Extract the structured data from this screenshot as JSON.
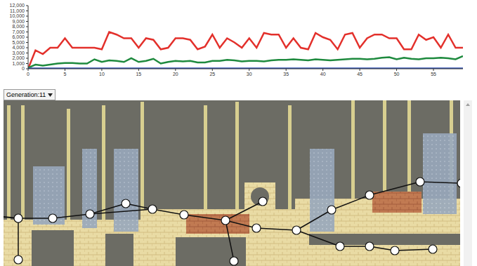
{
  "chart_data": {
    "type": "line",
    "x": [
      0,
      1,
      2,
      3,
      4,
      5,
      6,
      7,
      8,
      9,
      10,
      11,
      12,
      13,
      14,
      15,
      16,
      17,
      18,
      19,
      20,
      21,
      22,
      23,
      24,
      25,
      26,
      27,
      28,
      29,
      30,
      31,
      32,
      33,
      34,
      35,
      36,
      37,
      38,
      39,
      40,
      41,
      42,
      43,
      44,
      45,
      46,
      47,
      48,
      49,
      50,
      51,
      52,
      53,
      54,
      55,
      56,
      57,
      58,
      59
    ],
    "series": [
      {
        "color": "#e3302b",
        "values": [
          0,
          3500,
          2800,
          4000,
          4000,
          5800,
          4000,
          4000,
          4000,
          4000,
          3700,
          7000,
          6500,
          5800,
          5800,
          4000,
          5800,
          5500,
          3700,
          4000,
          5800,
          5800,
          5500,
          3700,
          4200,
          6500,
          4000,
          5800,
          5000,
          4000,
          5800,
          4000,
          6800,
          6500,
          6500,
          4000,
          5800,
          4000,
          3700,
          6800,
          6000,
          5500,
          3700,
          6500,
          6800,
          4000,
          5800,
          6500,
          6500,
          5800,
          5800,
          3700,
          3700,
          6500,
          5500,
          6000,
          4000,
          6500,
          4000,
          4000
        ]
      },
      {
        "color": "#1e8a3e",
        "values": [
          200,
          800,
          600,
          800,
          1000,
          1100,
          1100,
          1000,
          1000,
          1800,
          1300,
          1600,
          1500,
          1300,
          2000,
          1300,
          1500,
          1900,
          1000,
          1300,
          1500,
          1400,
          1500,
          1200,
          1200,
          1500,
          1500,
          1700,
          1600,
          1400,
          1500,
          1500,
          1400,
          1600,
          1700,
          1700,
          1800,
          1700,
          1600,
          1800,
          1700,
          1600,
          1700,
          1800,
          1900,
          1900,
          1800,
          1900,
          2100,
          2200,
          1800,
          2100,
          1900,
          1800,
          2000,
          2000,
          2100,
          2000,
          1800,
          2400
        ]
      },
      {
        "color": "#3454b4",
        "values": [
          0,
          0,
          0,
          0,
          0,
          0,
          0,
          0,
          0,
          0,
          0,
          0,
          0,
          0,
          0,
          0,
          0,
          0,
          0,
          0,
          0,
          0,
          0,
          0,
          0,
          0,
          0,
          0,
          0,
          0,
          0,
          0,
          0,
          0,
          0,
          0,
          0,
          0,
          0,
          0,
          0,
          0,
          0,
          0,
          0,
          0,
          0,
          0,
          0,
          0,
          0,
          0,
          0,
          0,
          0,
          0,
          0,
          0,
          0,
          0
        ]
      }
    ],
    "xlim": [
      0,
      59
    ],
    "xticks": [
      0,
      5,
      10,
      15,
      20,
      25,
      30,
      35,
      40,
      45,
      50,
      55
    ],
    "ylim": [
      0,
      12000
    ],
    "yticks": [
      0,
      {
        "value": 1000,
        "label": "1,000"
      },
      {
        "value": 2000,
        "label": "2,000"
      },
      {
        "value": 3000,
        "label": "3,000"
      },
      {
        "value": 4000,
        "label": "4,000"
      },
      {
        "value": 5000,
        "label": "5,000"
      },
      {
        "value": 6000,
        "label": "6,000"
      },
      {
        "value": 7000,
        "label": "7,000"
      },
      {
        "value": 8000,
        "label": "8,000"
      },
      {
        "value": 9000,
        "label": "9,000"
      },
      {
        "value": 10000,
        "label": "10,000"
      },
      {
        "value": 11000,
        "label": "11,000"
      },
      {
        "value": 12000,
        "label": "12,000"
      }
    ],
    "grid": false
  },
  "controls": {
    "generation_select": "Generation:11"
  }
}
